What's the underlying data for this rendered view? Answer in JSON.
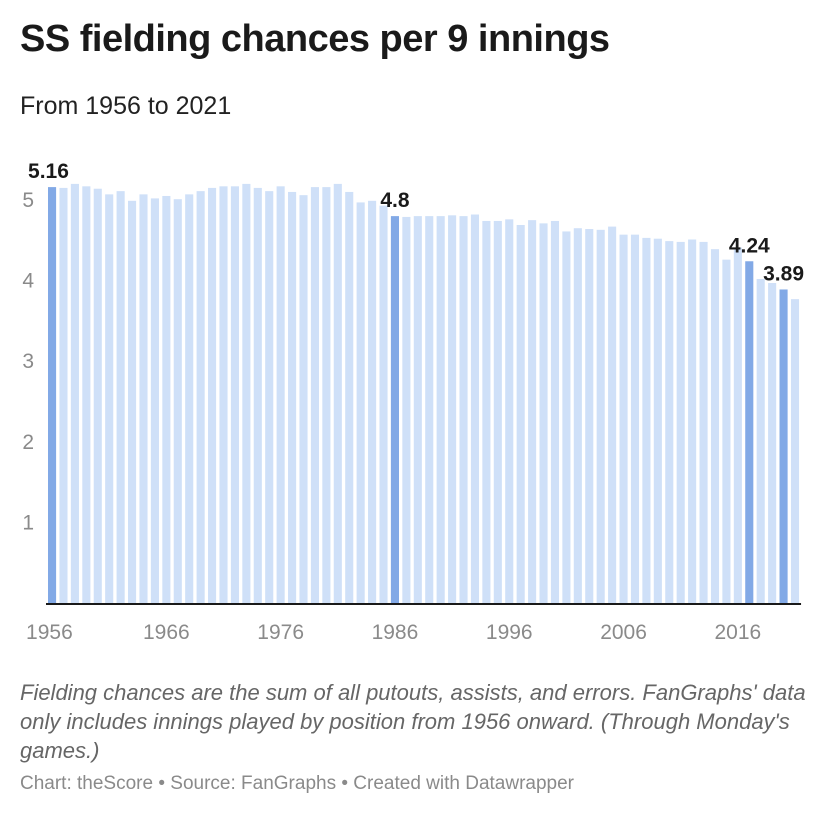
{
  "title": "SS fielding chances per 9 innings",
  "subtitle": "From 1956 to 2021",
  "notes": "Fielding chances are the sum of all putouts, assists, and errors. FanGraphs' data only includes innings played by position from 1956 onward. (Through Monday's games.)",
  "footer": "Chart: theScore • Source: FanGraphs • Created with Datawrapper",
  "colors": {
    "bar": "#cfe0f8",
    "highlight": "#82a9e6",
    "axis": "#1a1a1a"
  },
  "chart_data": {
    "type": "bar",
    "title": "SS fielding chances per 9 innings",
    "subtitle": "From 1956 to 2021",
    "xlabel": "",
    "ylabel": "",
    "ylim": [
      0,
      5.5
    ],
    "y_ticks": [
      1,
      2,
      3,
      4,
      5
    ],
    "x_ticks": [
      1956,
      1966,
      1976,
      1986,
      1996,
      2006,
      2016
    ],
    "grid": false,
    "categories": [
      1956,
      1957,
      1958,
      1959,
      1960,
      1961,
      1962,
      1963,
      1964,
      1965,
      1966,
      1967,
      1968,
      1969,
      1970,
      1971,
      1972,
      1973,
      1974,
      1975,
      1976,
      1977,
      1978,
      1979,
      1980,
      1981,
      1982,
      1983,
      1984,
      1985,
      1986,
      1987,
      1988,
      1989,
      1990,
      1991,
      1992,
      1993,
      1994,
      1995,
      1996,
      1997,
      1998,
      1999,
      2000,
      2001,
      2002,
      2003,
      2004,
      2005,
      2006,
      2007,
      2008,
      2009,
      2010,
      2011,
      2012,
      2013,
      2014,
      2015,
      2016,
      2017,
      2018,
      2019,
      2020,
      2021
    ],
    "values": [
      5.16,
      5.15,
      5.2,
      5.17,
      5.14,
      5.07,
      5.11,
      4.99,
      5.07,
      5.02,
      5.05,
      5.01,
      5.07,
      5.11,
      5.15,
      5.17,
      5.17,
      5.2,
      5.15,
      5.11,
      5.17,
      5.1,
      5.06,
      5.16,
      5.16,
      5.2,
      5.1,
      4.97,
      4.99,
      4.93,
      4.8,
      4.79,
      4.8,
      4.8,
      4.8,
      4.81,
      4.8,
      4.82,
      4.74,
      4.74,
      4.76,
      4.69,
      4.75,
      4.71,
      4.74,
      4.61,
      4.65,
      4.64,
      4.63,
      4.67,
      4.57,
      4.57,
      4.53,
      4.52,
      4.49,
      4.48,
      4.51,
      4.48,
      4.39,
      4.26,
      4.41,
      4.24,
      4.02,
      3.97,
      3.89,
      3.77
    ],
    "highlighted": [
      1956,
      1986,
      2017,
      2020
    ],
    "data_labels": [
      {
        "year": 1956,
        "label": "5.16"
      },
      {
        "year": 1986,
        "label": "4.8"
      },
      {
        "year": 2017,
        "label": "4.24"
      },
      {
        "year": 2020,
        "label": "3.89"
      }
    ]
  }
}
